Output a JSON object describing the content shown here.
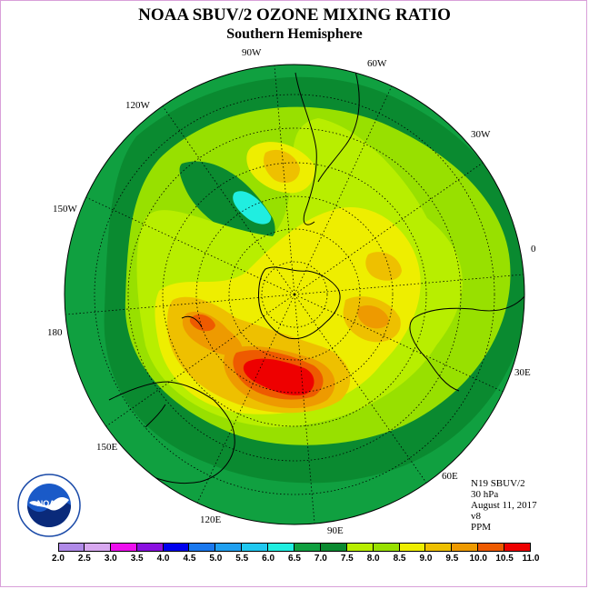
{
  "title": "NOAA SBUV/2 OZONE MIXING RATIO",
  "subtitle": "Southern Hemisphere",
  "longitude_labels": [
    "90W",
    "60W",
    "30W",
    "0",
    "30E",
    "60E",
    "90E",
    "120E",
    "150E",
    "180",
    "150W",
    "120W"
  ],
  "info": {
    "satellite": "N19 SBUV/2",
    "level": "30 hPa",
    "date": "August 11, 2017",
    "version": "v8",
    "units": "PPM"
  },
  "logo_text": "NOAA",
  "colorbar": {
    "ticks": [
      "2.0",
      "2.5",
      "3.0",
      "3.5",
      "4.0",
      "4.5",
      "5.0",
      "5.5",
      "6.0",
      "6.5",
      "7.0",
      "7.5",
      "8.0",
      "8.5",
      "9.0",
      "9.5",
      "10.0",
      "10.5",
      "11.0"
    ],
    "colors": [
      "#b08ae8",
      "#d8a8f0",
      "#ee10ee",
      "#8a10e0",
      "#0000ee",
      "#1a78ee",
      "#20a0f0",
      "#20c8f0",
      "#20eee0",
      "#10a040",
      "#0a8a30",
      "#b8ee00",
      "#98e000",
      "#eeee00",
      "#eec000",
      "#ee9a00",
      "#ee5a00",
      "#ee0000",
      "#8a4a2a"
    ]
  },
  "colors": {
    "outer_green": "#10a040",
    "dark_green": "#0a8a30",
    "light_green": "#98e000",
    "yellow_green": "#b8ee00",
    "yellow": "#eeee00",
    "orange_yellow": "#eec000",
    "orange": "#ee9a00",
    "dark_orange": "#ee5a00",
    "red": "#ee0000",
    "cyan": "#20eee0"
  }
}
